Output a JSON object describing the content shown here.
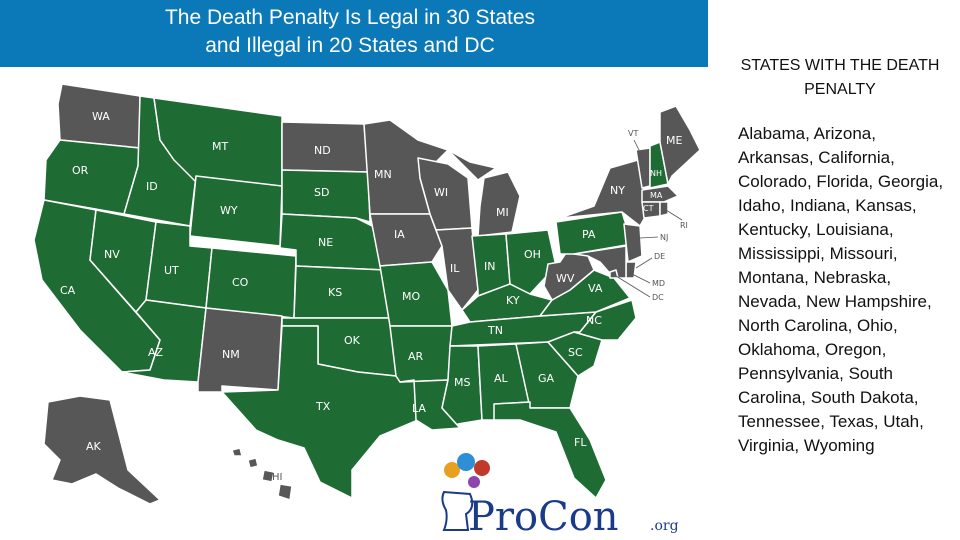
{
  "header": {
    "title_line1": "The Death Penalty Is Legal in 30 States",
    "title_line2": "and Illegal in 20 States and DC"
  },
  "colors": {
    "legal": "#1e6b34",
    "illegal": "#575757",
    "title_bg": "#0b78b8"
  },
  "map": {
    "labels": {
      "WA": "WA",
      "OR": "OR",
      "CA": "CA",
      "ID": "ID",
      "NV": "NV",
      "MT": "MT",
      "WY": "WY",
      "UT": "UT",
      "CO": "CO",
      "AZ": "AZ",
      "NM": "NM",
      "ND": "ND",
      "SD": "SD",
      "NE": "NE",
      "KS": "KS",
      "OK": "OK",
      "TX": "TX",
      "MN": "MN",
      "IA": "IA",
      "MO": "MO",
      "AR": "AR",
      "LA": "LA",
      "WI": "WI",
      "IL": "IL",
      "MI": "MI",
      "IN": "IN",
      "OH": "OH",
      "KY": "KY",
      "TN": "TN",
      "MS": "MS",
      "AL": "AL",
      "GA": "GA",
      "FL": "FL",
      "SC": "SC",
      "NC": "NC",
      "VA": "VA",
      "WV": "WV",
      "PA": "PA",
      "NY": "NY",
      "VT": "VT",
      "NH": "NH",
      "ME": "ME",
      "MA": "MA",
      "CT": "CT",
      "RI": "RI",
      "NJ": "NJ",
      "DE": "DE",
      "MD": "MD",
      "DC": "DC",
      "AK": "AK",
      "HI": "HI"
    },
    "legal_states": [
      "AL",
      "AZ",
      "AR",
      "CA",
      "CO",
      "FL",
      "GA",
      "ID",
      "IN",
      "KS",
      "KY",
      "LA",
      "MS",
      "MO",
      "MT",
      "NE",
      "NV",
      "NH",
      "NC",
      "OH",
      "OK",
      "OR",
      "PA",
      "SC",
      "SD",
      "TN",
      "TX",
      "UT",
      "VA",
      "WY"
    ],
    "illegal_states": [
      "AK",
      "CT",
      "DE",
      "HI",
      "IL",
      "IA",
      "ME",
      "MD",
      "MA",
      "MI",
      "MN",
      "NJ",
      "NM",
      "NY",
      "ND",
      "RI",
      "VT",
      "WA",
      "WV",
      "WI",
      "DC"
    ]
  },
  "logo": {
    "text_pro_con": "ProCon",
    "text_org": ".org"
  },
  "sidebar": {
    "heading": "STATES WITH THE DEATH PENALTY",
    "states_list": "Alabama, Arizona, Arkansas, California, Colorado, Florida, Georgia, Idaho, Indiana, Kansas, Kentucky, Louisiana, Mississippi, Missouri, Montana, Nebraska, Nevada, New Hampshire, North Carolina, Ohio, Oklahoma, Oregon, Pennsylvania, South Carolina, South Dakota, Tennessee, Texas, Utah, Virginia, Wyoming"
  }
}
